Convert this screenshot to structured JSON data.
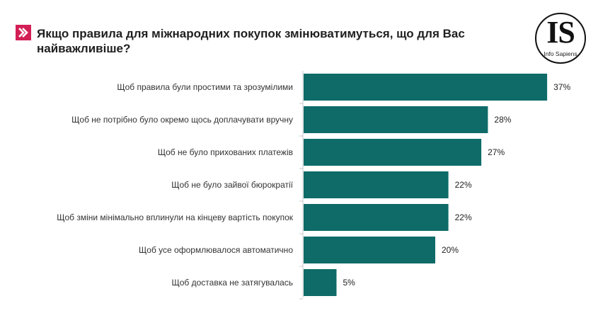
{
  "title": "Якщо правила для міжнародних покупок змінюватимуться, що для Вас найважливіше?",
  "logo": {
    "letters": "IS",
    "name": "Info Sapiens"
  },
  "colors": {
    "bar": "#0e6b68",
    "accent": "#d21f55",
    "axis": "#c8c8c8"
  },
  "chart_data": {
    "type": "bar",
    "orientation": "horizontal",
    "categories": [
      "Щоб правила були простими та зрозумілими",
      "Щоб не потрібно було окремо щось доплачувати вручну",
      "Щоб не було прихованих платежів",
      "Щоб не було зайвої бюрократії",
      "Щоб зміни мінімально вплинули на кінцеву вартість покупок",
      "Щоб усе оформлювалося автоматично",
      "Щоб доставка не затягувалась"
    ],
    "values": [
      37,
      28,
      27,
      22,
      22,
      20,
      5
    ],
    "value_labels": [
      "37%",
      "28%",
      "27%",
      "22%",
      "22%",
      "20%",
      "5%"
    ],
    "grid": false,
    "legend": "none"
  }
}
